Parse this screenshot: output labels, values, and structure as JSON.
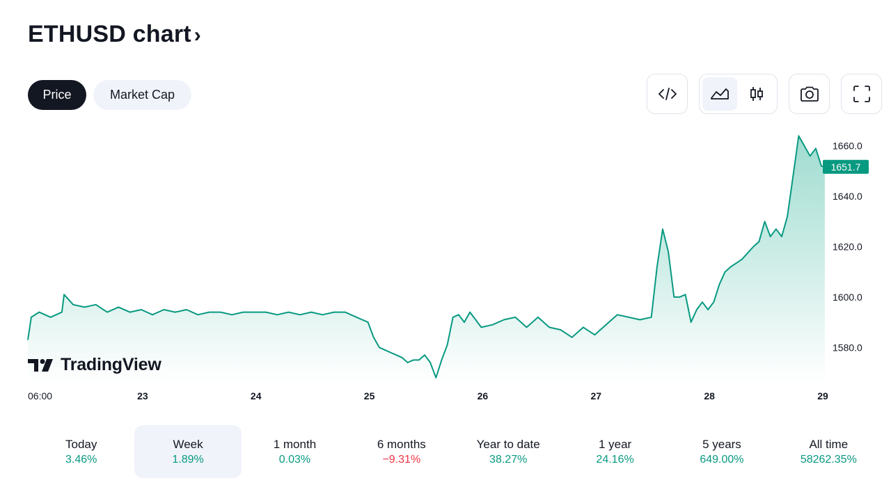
{
  "header": {
    "title": "ETHUSD chart",
    "chevron": "›"
  },
  "tabs": [
    {
      "label": "Price",
      "active": true
    },
    {
      "label": "Market Cap",
      "active": false
    }
  ],
  "toolbar": {
    "embed_icon": "code-brackets-icon",
    "line_style_icon": "area-chart-icon",
    "candle_style_icon": "candlestick-icon",
    "snapshot_icon": "camera-icon",
    "fullscreen_icon": "fullscreen-icon",
    "selected_style": "area"
  },
  "branding": {
    "logo_text": "TradingView"
  },
  "colors": {
    "line": "#089981",
    "area_top": "#8fd6c8",
    "area_bottom": "#ffffff",
    "positive": "#089981",
    "negative": "#f23645",
    "price_tag_bg": "#089981"
  },
  "periods": [
    {
      "label": "Today",
      "value": "3.46%",
      "trend": "positive",
      "selected": false
    },
    {
      "label": "Week",
      "value": "1.89%",
      "trend": "positive",
      "selected": true
    },
    {
      "label": "1 month",
      "value": "0.03%",
      "trend": "positive",
      "selected": false
    },
    {
      "label": "6 months",
      "value": "−9.31%",
      "trend": "negative",
      "selected": false
    },
    {
      "label": "Year to date",
      "value": "38.27%",
      "trend": "positive",
      "selected": false
    },
    {
      "label": "1 year",
      "value": "24.16%",
      "trend": "positive",
      "selected": false
    },
    {
      "label": "5 years",
      "value": "649.00%",
      "trend": "positive",
      "selected": false
    },
    {
      "label": "All time",
      "value": "58262.35%",
      "trend": "positive",
      "selected": false
    }
  ],
  "chart_data": {
    "type": "area",
    "x_range": [
      22.0,
      29.0
    ],
    "ylim": [
      1566,
      1666
    ],
    "yticks": [
      1580.0,
      1600.0,
      1620.0,
      1640.0,
      1660.0
    ],
    "ytick_labels": [
      "1580.0",
      "1600.0",
      "1620.0",
      "1640.0",
      "1660.0"
    ],
    "xticks": [
      {
        "x": 22.0,
        "label": "06:00"
      },
      {
        "x": 23.0,
        "label": "23"
      },
      {
        "x": 24.0,
        "label": "24"
      },
      {
        "x": 25.0,
        "label": "25"
      },
      {
        "x": 26.0,
        "label": "26"
      },
      {
        "x": 27.0,
        "label": "27"
      },
      {
        "x": 28.0,
        "label": "28"
      },
      {
        "x": 29.0,
        "label": "29"
      }
    ],
    "last_price_label": "1651.7",
    "last_price": 1651.7,
    "grid": false,
    "series": [
      {
        "x": [
          22.0,
          22.03,
          22.1,
          22.2,
          22.3,
          22.32,
          22.4,
          22.5,
          22.6,
          22.7,
          22.8,
          22.9,
          23.0,
          23.1,
          23.2,
          23.3,
          23.4,
          23.5,
          23.6,
          23.7,
          23.8,
          23.9,
          24.0,
          24.1,
          24.2,
          24.3,
          24.4,
          24.5,
          24.6,
          24.7,
          24.8,
          24.85,
          24.9,
          24.95,
          25.0,
          25.05,
          25.1,
          25.15,
          25.2,
          25.25,
          25.3,
          25.35,
          25.4,
          25.45,
          25.5,
          25.55,
          25.6,
          25.65,
          25.7,
          25.75,
          25.8,
          25.85,
          25.9,
          26.0,
          26.1,
          26.2,
          26.3,
          26.4,
          26.5,
          26.6,
          26.7,
          26.8,
          26.9,
          27.0,
          27.1,
          27.2,
          27.3,
          27.4,
          27.5,
          27.55,
          27.6,
          27.65,
          27.7,
          27.75,
          27.8,
          27.85,
          27.9,
          27.95,
          28.0,
          28.05,
          28.1,
          28.15,
          28.2,
          28.3,
          28.4,
          28.45,
          28.5,
          28.55,
          28.6,
          28.65,
          28.7,
          28.75,
          28.8,
          28.85,
          28.9,
          28.95,
          29.0,
          29.03
        ],
        "y": [
          1583,
          1592,
          1594,
          1592,
          1594,
          1601,
          1597,
          1596,
          1597,
          1594,
          1596,
          1594,
          1595,
          1593,
          1595,
          1594,
          1595,
          1593,
          1594,
          1594,
          1593,
          1594,
          1594,
          1594,
          1593,
          1594,
          1593,
          1594,
          1593,
          1594,
          1594,
          1593,
          1592,
          1591,
          1590,
          1584,
          1580,
          1579,
          1578,
          1577,
          1576,
          1574,
          1575,
          1575,
          1577,
          1574,
          1568,
          1575,
          1581,
          1592,
          1593,
          1590,
          1594,
          1588,
          1589,
          1591,
          1592,
          1588,
          1592,
          1588,
          1587,
          1584,
          1588,
          1585,
          1589,
          1593,
          1592,
          1591,
          1592,
          1612,
          1627,
          1618,
          1600,
          1600,
          1601,
          1590,
          1595,
          1598,
          1595,
          1598,
          1605,
          1610,
          1612,
          1615,
          1620,
          1622,
          1630,
          1624,
          1627,
          1624,
          1632,
          1648,
          1664,
          1660,
          1656,
          1659,
          1652,
          1651.7
        ]
      }
    ]
  }
}
